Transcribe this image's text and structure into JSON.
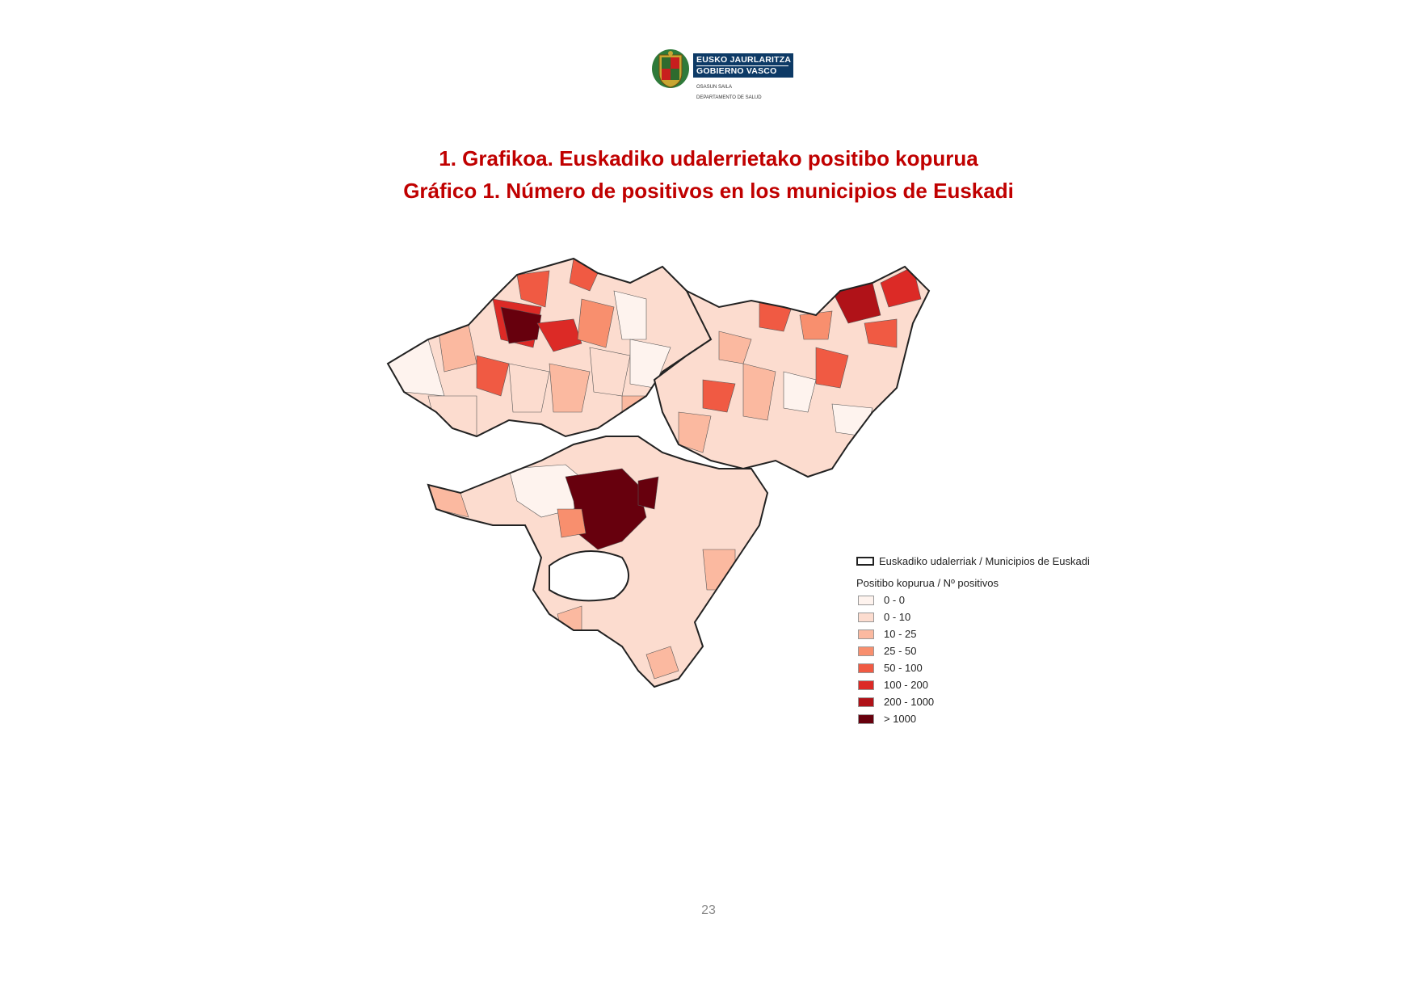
{
  "logo": {
    "line1": "EUSKO JAURLARITZA",
    "line2": "GOBIERNO VASCO",
    "dept1": "OSASUN SAILA",
    "dept2": "DEPARTAMENTO DE SALUD",
    "colors": {
      "band": "#0d3a66"
    }
  },
  "title_eu": "1. Grafikoa. Euskadiko udalerrietako positibo kopurua",
  "title_es": "Gráfico 1. Número de positivos en los municipios de Euskadi",
  "legend": {
    "boundary_label": "Euskadiko udalerriak / Municipios de Euskadi",
    "subtitle": "Positibo kopurua / Nº positivos",
    "classes": [
      {
        "label": "0 - 0",
        "color": "#fef3ee"
      },
      {
        "label": "0 - 10",
        "color": "#fcdccf"
      },
      {
        "label": "10 - 25",
        "color": "#fbb9a0"
      },
      {
        "label": "25 - 50",
        "color": "#f88f6e"
      },
      {
        "label": "50 - 100",
        "color": "#f05a43"
      },
      {
        "label": "100 - 200",
        "color": "#dc2a26"
      },
      {
        "label": "200 - 1000",
        "color": "#b01218"
      },
      {
        "label": "> 1000",
        "color": "#67000d"
      }
    ]
  },
  "page_number": "23"
}
